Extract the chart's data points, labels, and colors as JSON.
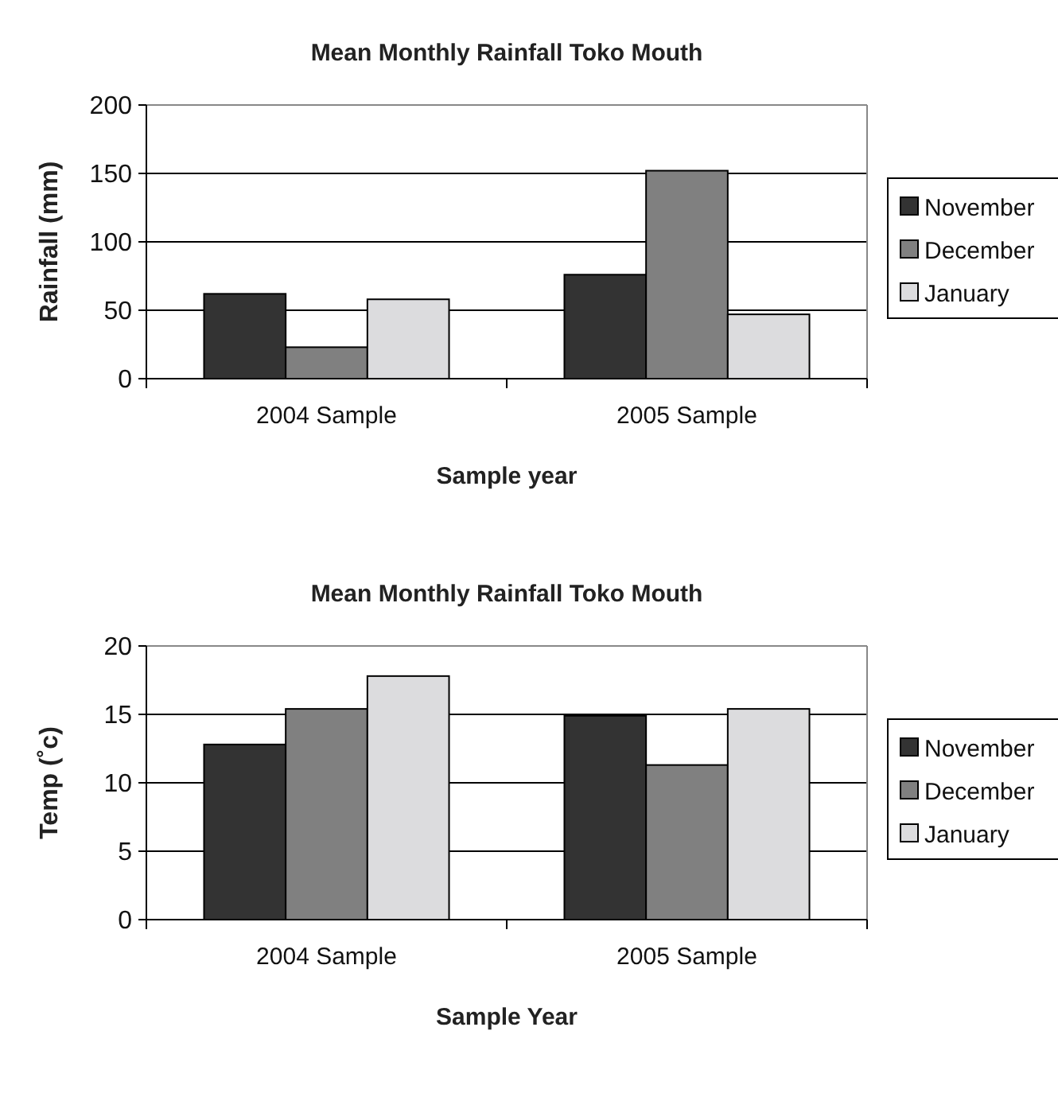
{
  "chart_data": [
    {
      "type": "bar",
      "title": "Mean Monthly Rainfall Toko Mouth",
      "xlabel": "Sample year",
      "ylabel": "Rainfall (mm)",
      "categories": [
        "2004 Sample",
        "2005 Sample"
      ],
      "series": [
        {
          "name": "November",
          "color": "#333333",
          "values": [
            62,
            76
          ]
        },
        {
          "name": "December",
          "color": "#808080",
          "values": [
            23,
            152
          ]
        },
        {
          "name": "January",
          "color": "#dcdcde",
          "values": [
            58,
            47
          ]
        }
      ],
      "ylim": [
        0,
        200
      ],
      "yticks": [
        0,
        50,
        100,
        150,
        200
      ],
      "grid": "y",
      "legend": "right"
    },
    {
      "type": "bar",
      "title": "Mean Monthly Rainfall Toko Mouth",
      "xlabel": "Sample Year",
      "ylabel": "Temp (˚c)",
      "categories": [
        "2004 Sample",
        "2005 Sample"
      ],
      "series": [
        {
          "name": "November",
          "color": "#333333",
          "values": [
            12.8,
            14.9
          ]
        },
        {
          "name": "December",
          "color": "#808080",
          "values": [
            15.4,
            11.3
          ]
        },
        {
          "name": "January",
          "color": "#dcdcde",
          "values": [
            17.8,
            15.4
          ]
        }
      ],
      "ylim": [
        0,
        20
      ],
      "yticks": [
        0,
        5,
        10,
        15,
        20
      ],
      "grid": "y",
      "legend": "right"
    }
  ]
}
